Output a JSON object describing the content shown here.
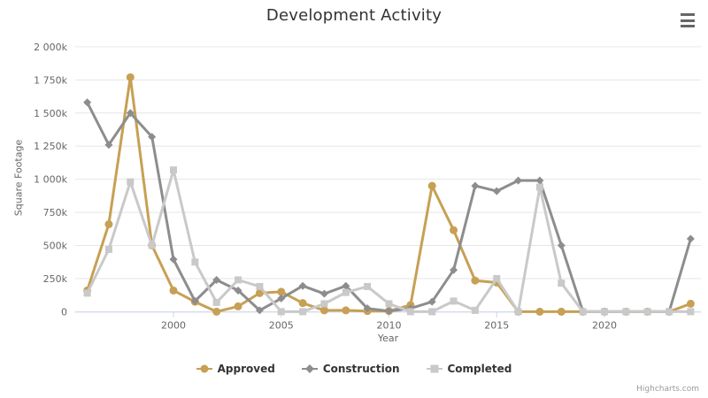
{
  "title": "Development Activity",
  "menu": {
    "tooltip": "Chart context menu"
  },
  "credit": "Highcharts.com",
  "colors": {
    "approved": "#C7A054",
    "construction": "#8D8D8D",
    "completed": "#C9C9C9",
    "grid": "#E6E6E6",
    "axis_line": "#CCD6EB",
    "label": "#666666",
    "title_text": "#333333"
  },
  "chart_data": {
    "type": "line",
    "title": "Development Activity",
    "xlabel": "Year",
    "ylabel": "Square Footage",
    "units": "thousand square feet (k)",
    "grid": true,
    "legend_position": "bottom",
    "x": [
      1996,
      1997,
      1998,
      1999,
      2000,
      2001,
      2002,
      2003,
      2004,
      2005,
      2006,
      2007,
      2008,
      2009,
      2010,
      2011,
      2012,
      2013,
      2014,
      2015,
      2016,
      2017,
      2018,
      2019,
      2020,
      2021,
      2022,
      2023,
      2024
    ],
    "x_ticks": [
      2000,
      2005,
      2010,
      2015,
      2020
    ],
    "ylim": [
      0,
      2000
    ],
    "y_ticks": [
      {
        "v": 0,
        "label": "0"
      },
      {
        "v": 250,
        "label": "250k"
      },
      {
        "v": 500,
        "label": "500k"
      },
      {
        "v": 750,
        "label": "750k"
      },
      {
        "v": 1000,
        "label": "1 000k"
      },
      {
        "v": 1250,
        "label": "1 250k"
      },
      {
        "v": 1500,
        "label": "1 500k"
      },
      {
        "v": 1750,
        "label": "1 750k"
      },
      {
        "v": 2000,
        "label": "2 000k"
      }
    ],
    "series": [
      {
        "name": "Approved",
        "marker": "circle",
        "color": "#C7A054",
        "values": [
          160,
          660,
          1770,
          500,
          160,
          75,
          0,
          40,
          140,
          150,
          65,
          10,
          10,
          5,
          5,
          50,
          950,
          615,
          235,
          220,
          0,
          0,
          0,
          0,
          0,
          0,
          0,
          0,
          60
        ]
      },
      {
        "name": "Construction",
        "marker": "diamond",
        "color": "#8D8D8D",
        "values": [
          1580,
          1260,
          1500,
          1320,
          395,
          80,
          240,
          160,
          10,
          100,
          195,
          135,
          195,
          25,
          5,
          25,
          75,
          315,
          950,
          910,
          990,
          990,
          500,
          0,
          0,
          0,
          0,
          0,
          550
        ]
      },
      {
        "name": "Completed",
        "marker": "square",
        "color": "#C9C9C9",
        "values": [
          140,
          470,
          980,
          500,
          1070,
          375,
          70,
          240,
          190,
          0,
          0,
          60,
          145,
          190,
          60,
          0,
          0,
          80,
          10,
          250,
          0,
          940,
          215,
          0,
          0,
          0,
          0,
          0,
          0
        ]
      }
    ]
  }
}
